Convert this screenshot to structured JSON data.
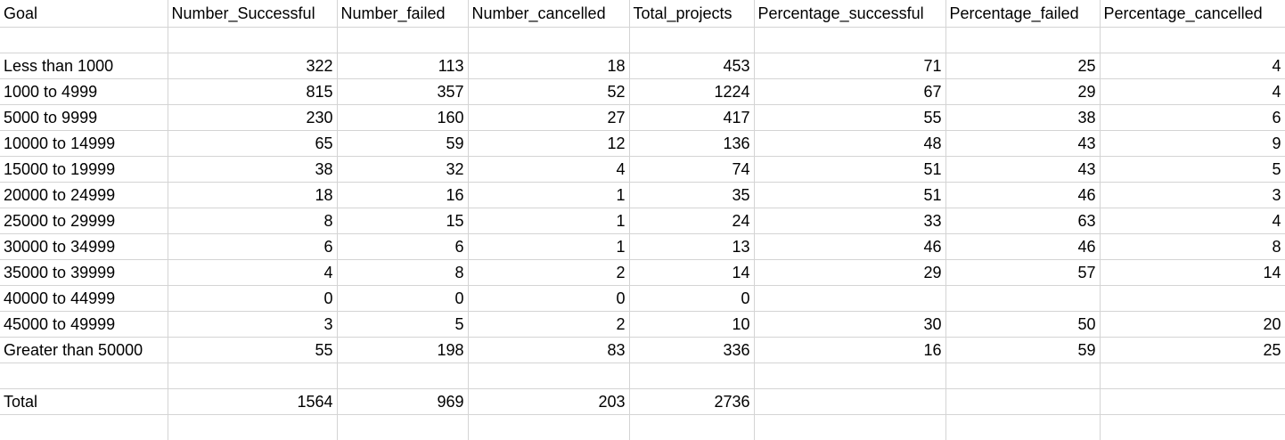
{
  "sheet": {
    "columns": [
      "Goal",
      "Number_Successful",
      "Number_failed",
      "Number_cancelled",
      "Total_projects",
      "Percentage_successful",
      "Percentage_failed",
      "Percentage_cancelled"
    ],
    "rows": [
      [
        "",
        "",
        "",
        "",
        "",
        "",
        "",
        ""
      ],
      [
        "Less than 1000",
        "322",
        "113",
        "18",
        "453",
        "71",
        "25",
        "4"
      ],
      [
        "1000 to 4999",
        "815",
        "357",
        "52",
        "1224",
        "67",
        "29",
        "4"
      ],
      [
        "5000 to 9999",
        "230",
        "160",
        "27",
        "417",
        "55",
        "38",
        "6"
      ],
      [
        "10000 to 14999",
        "65",
        "59",
        "12",
        "136",
        "48",
        "43",
        "9"
      ],
      [
        "15000 to 19999",
        "38",
        "32",
        "4",
        "74",
        "51",
        "43",
        "5"
      ],
      [
        "20000 to 24999",
        "18",
        "16",
        "1",
        "35",
        "51",
        "46",
        "3"
      ],
      [
        "25000 to 29999",
        "8",
        "15",
        "1",
        "24",
        "33",
        "63",
        "4"
      ],
      [
        "30000 to 34999",
        "6",
        "6",
        "1",
        "13",
        "46",
        "46",
        "8"
      ],
      [
        "35000 to 39999",
        "4",
        "8",
        "2",
        "14",
        "29",
        "57",
        "14"
      ],
      [
        "40000 to 44999",
        "0",
        "0",
        "0",
        "0",
        "",
        "",
        ""
      ],
      [
        "45000 to 49999",
        "3",
        "5",
        "2",
        "10",
        "30",
        "50",
        "20"
      ],
      [
        "Greater than 50000",
        "55",
        "198",
        "83",
        "336",
        "16",
        "59",
        "25"
      ],
      [
        "",
        "",
        "",
        "",
        "",
        "",
        "",
        ""
      ],
      [
        "Total",
        "1564",
        "969",
        "203",
        "2736",
        "",
        "",
        ""
      ],
      [
        "",
        "",
        "",
        "",
        "",
        "",
        "",
        ""
      ]
    ]
  }
}
